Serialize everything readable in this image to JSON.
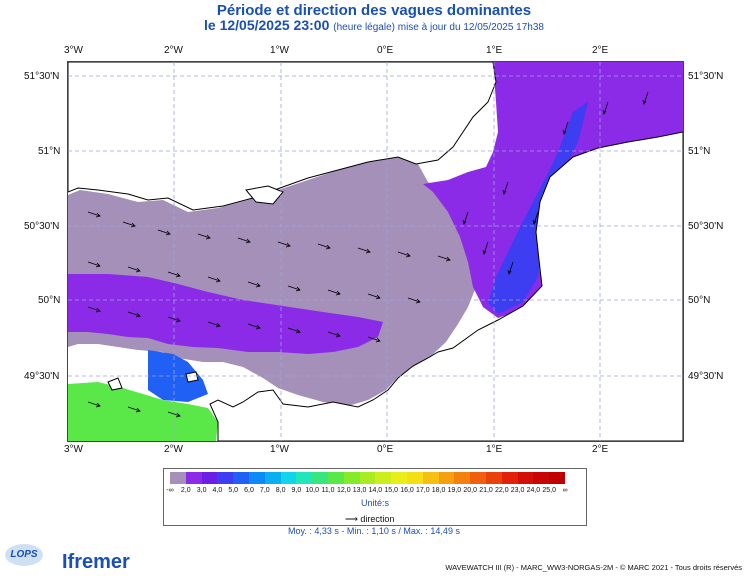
{
  "title": "Période et direction des vagues dominantes",
  "subtitle_main": "le 12/05/2025 23:00",
  "subtitle_small": "(heure légale) mise à jour du 12/05/2025 17h38",
  "map": {
    "lon_labels": [
      "3°W",
      "2°W",
      "1°W",
      "0°E",
      "1°E",
      "2°E"
    ],
    "lat_labels": [
      "51°30'N",
      "51°N",
      "50°30'N",
      "50°N",
      "49°30'N"
    ],
    "lon_range": [
      -3.0,
      2.75
    ],
    "lat_range": [
      49.2,
      51.7
    ],
    "sea_color_low": "#a490b8",
    "sea_color_mid": "#8b2be8",
    "sea_color_high": "#5a3ef0",
    "land_color": "#ffffff",
    "arrow_color": "#000000",
    "graticule_color": "#9fa3e0"
  },
  "legend": {
    "values": [
      "-∞",
      "2,0",
      "3,0",
      "4,0",
      "5,0",
      "6,0",
      "7,0",
      "8,0",
      "9,0",
      "10,0",
      "11,0",
      "12,0",
      "13,0",
      "14,0",
      "15,0",
      "16,0",
      "17,0",
      "18,0",
      "19,0",
      "20,0",
      "21,0",
      "22,0",
      "23,0",
      "24,0",
      "25,0",
      "∞"
    ],
    "colors": [
      "#a490b8",
      "#8b2be8",
      "#6a1ee6",
      "#3d3df2",
      "#2060f5",
      "#0d8af8",
      "#08b0f2",
      "#10d4e8",
      "#20e6b8",
      "#38e680",
      "#5ae848",
      "#84ea2c",
      "#aaec22",
      "#ccee1c",
      "#e8ee18",
      "#f4de14",
      "#f6c012",
      "#f6a010",
      "#f4800e",
      "#f0600c",
      "#ea400a",
      "#e02208",
      "#d41006",
      "#c80404",
      "#c00000"
    ],
    "unit": "Unité:s"
  },
  "direction_label": "direction",
  "stats": "Moy. : 4,33 s   -   Min. : 1,10 s / Max. : 14,49 s",
  "footer": "WAVEWATCH III (R) - MARC_WW3-NORGAS-2M - © MARC 2021 - Tous droits réservés",
  "logos": {
    "lops": "LOPS",
    "ifremer": "Ifremer"
  }
}
